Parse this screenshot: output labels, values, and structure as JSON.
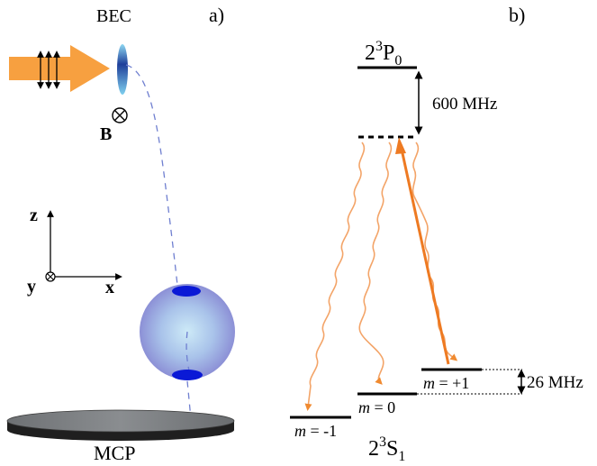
{
  "panel_a": {
    "label": "a)",
    "bec_label": "BEC",
    "field_label": "B",
    "detector_label": "MCP",
    "axes": {
      "z": "z",
      "x": "x",
      "y": "y"
    }
  },
  "panel_b": {
    "label": "b)",
    "excited_state": {
      "base": "2",
      "sup": "3",
      "main": "P",
      "sub": "0"
    },
    "ground_state": {
      "base": "2",
      "sup": "3",
      "main": "S",
      "sub": "1"
    },
    "detuning_label": "600 MHz",
    "zeeman_label": "26 MHz",
    "sublevels": [
      {
        "italic": "m",
        "rest": " = -1"
      },
      {
        "italic": "m",
        "rest": " = 0"
      },
      {
        "italic": "m",
        "rest": " = +1"
      }
    ]
  },
  "colors": {
    "laser": "#f7a040",
    "laser_line": "#ee7a22",
    "spontaneous": "#f3a468",
    "trajectory": "#6f7fd0",
    "sphere_cap": "#0a19d6",
    "sphere_core": "#cbe6f5",
    "sphere_edge": "#8b92d4",
    "mcp_top": "#7e8184",
    "mcp_side": "#202020"
  }
}
